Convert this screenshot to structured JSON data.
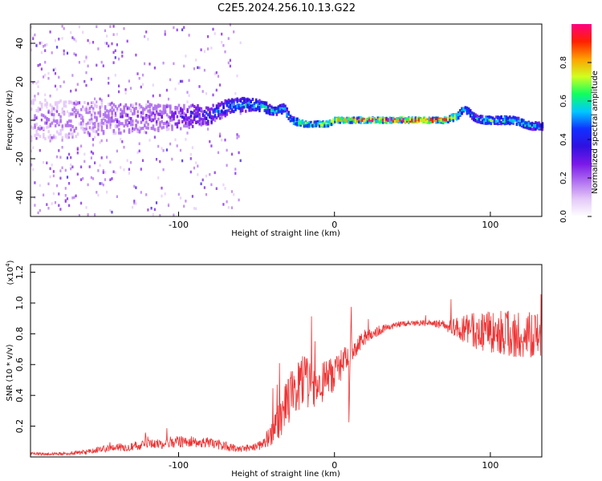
{
  "title": "C2E5.2024.256.10.13.G22",
  "colors": {
    "snr_line": "#ee3333",
    "colormap": [
      "#ffffff",
      "#e4c8f8",
      "#b070f0",
      "#7a18e8",
      "#3010e0",
      "#1030ff",
      "#00c8ff",
      "#10ff60",
      "#d0ff20",
      "#ffa000",
      "#ff2000",
      "#ff0080"
    ]
  },
  "chart_data": [
    {
      "type": "heatmap",
      "xlabel": "Height of straight line (km)",
      "ylabel": "Frequency (Hz)",
      "xlim": [
        -195,
        133
      ],
      "ylim": [
        -50,
        50
      ],
      "xticks": [
        -100,
        0,
        100
      ],
      "yticks": [
        -40,
        -20,
        0,
        20,
        40
      ],
      "colorbar": {
        "label": "Normalized spectral amplitude",
        "range": [
          0,
          1
        ],
        "ticks": [
          "0.0",
          "0.2",
          "0.4",
          "0.6",
          "0.8"
        ]
      },
      "ridge": [
        {
          "x": -195,
          "freq": 0,
          "amp": 0.15,
          "spread": 18
        },
        {
          "x": -150,
          "freq": 1,
          "amp": 0.2,
          "spread": 14
        },
        {
          "x": -120,
          "freq": 1,
          "amp": 0.25,
          "spread": 12
        },
        {
          "x": -95,
          "freq": 2,
          "amp": 0.3,
          "spread": 10
        },
        {
          "x": -80,
          "freq": 3,
          "amp": 0.4,
          "spread": 8
        },
        {
          "x": -65,
          "freq": 8,
          "amp": 0.5,
          "spread": 6
        },
        {
          "x": -50,
          "freq": 8,
          "amp": 0.55,
          "spread": 5
        },
        {
          "x": -40,
          "freq": 5,
          "amp": 0.55,
          "spread": 4
        },
        {
          "x": -33,
          "freq": 6,
          "amp": 0.55,
          "spread": 4
        },
        {
          "x": -28,
          "freq": 0,
          "amp": 0.6,
          "spread": 3
        },
        {
          "x": -20,
          "freq": -2,
          "amp": 0.7,
          "spread": 2
        },
        {
          "x": -5,
          "freq": -2,
          "amp": 0.75,
          "spread": 2
        },
        {
          "x": 0,
          "freq": 0,
          "amp": 0.8,
          "spread": 2
        },
        {
          "x": 20,
          "freq": 0,
          "amp": 0.9,
          "spread": 2
        },
        {
          "x": 50,
          "freq": 0,
          "amp": 0.95,
          "spread": 2
        },
        {
          "x": 70,
          "freq": 0,
          "amp": 0.9,
          "spread": 2
        },
        {
          "x": 78,
          "freq": 2,
          "amp": 0.7,
          "spread": 3
        },
        {
          "x": 82,
          "freq": 6,
          "amp": 0.6,
          "spread": 3
        },
        {
          "x": 86,
          "freq": 4,
          "amp": 0.55,
          "spread": 3
        },
        {
          "x": 90,
          "freq": 1,
          "amp": 0.55,
          "spread": 3
        },
        {
          "x": 95,
          "freq": 0,
          "amp": 0.6,
          "spread": 3
        },
        {
          "x": 105,
          "freq": 0,
          "amp": 0.6,
          "spread": 3
        },
        {
          "x": 115,
          "freq": 0,
          "amp": 0.6,
          "spread": 3
        },
        {
          "x": 125,
          "freq": -3,
          "amp": 0.55,
          "spread": 3
        },
        {
          "x": 133,
          "freq": -3,
          "amp": 0.5,
          "spread": 3
        }
      ]
    },
    {
      "type": "line",
      "xlabel": "Height of straight line (km)",
      "ylabel": "SNR (10 * v/v)",
      "y_multiplier_label": "(x10",
      "y_multiplier_exponent": "4",
      "y_multiplier_close": ")",
      "xlim": [
        -195,
        133
      ],
      "ylim": [
        0,
        1.25
      ],
      "xticks": [
        -100,
        0,
        100
      ],
      "yticks": [
        0.2,
        0.4,
        0.6,
        0.8,
        1.0,
        1.2
      ],
      "ytick_labels": [
        "0.2",
        "0.4",
        "0.6",
        "0.8",
        "1.0",
        "1.2"
      ],
      "series": [
        {
          "x": [
            -195,
            -180,
            -160,
            -150,
            -140,
            -130,
            -120,
            -110,
            -100,
            -90,
            -80,
            -70,
            -60,
            -50,
            -45,
            -40,
            -35,
            -30,
            -25,
            -20,
            -15,
            -10,
            -5,
            0,
            5,
            10,
            15,
            20,
            30,
            40,
            50,
            60,
            70,
            80,
            90,
            100,
            110,
            120,
            133
          ],
          "y": [
            0.02,
            0.02,
            0.03,
            0.05,
            0.06,
            0.07,
            0.08,
            0.09,
            0.1,
            0.1,
            0.09,
            0.07,
            0.05,
            0.07,
            0.1,
            0.15,
            0.25,
            0.35,
            0.45,
            0.48,
            0.47,
            0.46,
            0.5,
            0.55,
            0.6,
            0.68,
            0.73,
            0.78,
            0.83,
            0.86,
            0.87,
            0.87,
            0.86,
            0.83,
            0.82,
            0.82,
            0.8,
            0.8,
            0.78
          ],
          "noise": [
            0.01,
            0.01,
            0.015,
            0.02,
            0.025,
            0.03,
            0.03,
            0.035,
            0.04,
            0.04,
            0.035,
            0.03,
            0.02,
            0.03,
            0.05,
            0.08,
            0.12,
            0.16,
            0.18,
            0.18,
            0.16,
            0.14,
            0.13,
            0.12,
            0.1,
            0.08,
            0.06,
            0.05,
            0.03,
            0.02,
            0.02,
            0.02,
            0.03,
            0.08,
            0.12,
            0.14,
            0.15,
            0.15,
            0.15
          ]
        }
      ]
    }
  ]
}
